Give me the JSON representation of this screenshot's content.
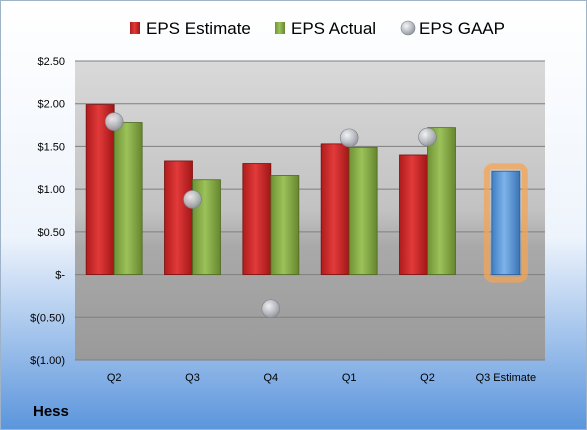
{
  "company": "Hess",
  "colors": {
    "estimate": "#d42a2a",
    "actual": "#8bb04a",
    "gaap": "#b8bcc4",
    "projected_estimate": "#5b9bd5",
    "highlight_glow": "#f5a454",
    "background_top": "#ffffff",
    "background_bottom": "#5b95dc"
  },
  "chart_data": {
    "type": "bar",
    "categories": [
      "Q2",
      "Q3",
      "Q4",
      "Q1",
      "Q2",
      "Q3 Estimate"
    ],
    "series": [
      {
        "name": "EPS Estimate",
        "values": [
          1.99,
          1.33,
          1.3,
          1.53,
          1.4,
          1.21
        ]
      },
      {
        "name": "EPS Actual",
        "values": [
          1.78,
          1.11,
          1.16,
          1.49,
          1.72,
          null
        ]
      },
      {
        "name": "EPS GAAP",
        "type": "scatter",
        "values": [
          1.79,
          0.88,
          -0.4,
          1.6,
          1.61,
          null
        ]
      }
    ],
    "highlighted_category": "Q3 Estimate",
    "ylim": [
      -1.0,
      2.5
    ],
    "yticks": [
      2.5,
      2.0,
      1.5,
      1.0,
      0.5,
      0,
      -0.5,
      -1.0
    ],
    "ytick_labels": [
      "$2.50",
      "$2.00",
      "$1.50",
      "$1.00",
      "$0.50",
      "$-",
      "$(0.50)",
      "$(1.00)"
    ],
    "grid": true,
    "legend": "top"
  }
}
